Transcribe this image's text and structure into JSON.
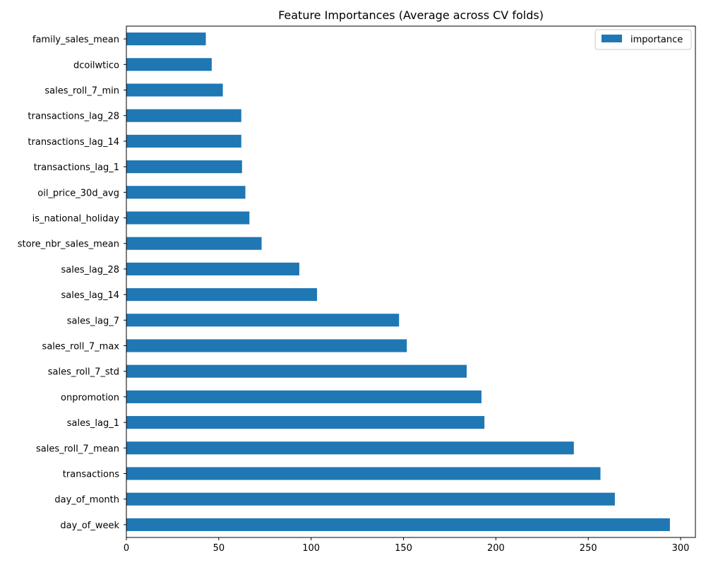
{
  "chart_data": {
    "type": "bar",
    "orientation": "horizontal",
    "title": "Feature Importances (Average across CV folds)",
    "xlabel": "",
    "ylabel": "",
    "xlim": [
      0,
      308
    ],
    "xticks": [
      0,
      50,
      100,
      150,
      200,
      250,
      300
    ],
    "grid": false,
    "legend_position": "top-right",
    "bar_color": "#1f77b4",
    "series": [
      {
        "name": "importance",
        "values": [
          294.2,
          264.4,
          256.6,
          242.2,
          193.8,
          192.2,
          184.2,
          151.8,
          147.6,
          103.2,
          93.6,
          73.2,
          66.6,
          64.4,
          62.6,
          62.2,
          62.2,
          52.2,
          46.2,
          43.0
        ]
      }
    ],
    "categories": [
      "day_of_week",
      "day_of_month",
      "transactions",
      "sales_roll_7_mean",
      "sales_lag_1",
      "onpromotion",
      "sales_roll_7_std",
      "sales_roll_7_max",
      "sales_lag_7",
      "sales_lag_14",
      "sales_lag_28",
      "store_nbr_sales_mean",
      "is_national_holiday",
      "oil_price_30d_avg",
      "transactions_lag_1",
      "transactions_lag_14",
      "transactions_lag_28",
      "sales_roll_7_min",
      "dcoilwtico",
      "family_sales_mean"
    ]
  }
}
